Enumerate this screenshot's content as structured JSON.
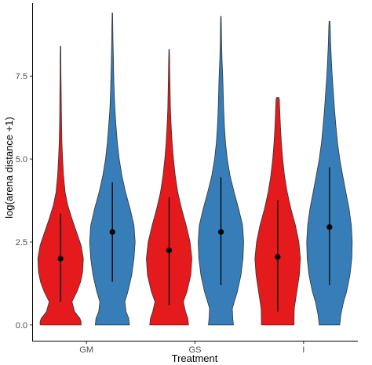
{
  "chart_data": {
    "type": "violin",
    "xlabel": "Treatment",
    "ylabel": "log(arena distance +1)",
    "ylim": [
      -0.5,
      9.7
    ],
    "yticks": [
      0.0,
      2.5,
      5.0,
      7.5
    ],
    "ytick_labels": [
      "0.0",
      "2.5",
      "5.0",
      "7.5"
    ],
    "categories": [
      "GM",
      "GS",
      "I"
    ],
    "grid": false,
    "legend": "none",
    "colors": {
      "red": "#e41a1c",
      "blue": "#377eb8",
      "outline": "#333333",
      "axis": "#000000"
    },
    "violins": [
      {
        "category": "GM",
        "color": "red",
        "min": 0.0,
        "max": 8.4,
        "point": 2.0,
        "lower": 0.7,
        "upper": 3.35,
        "profile": [
          [
            0.0,
            0.9
          ],
          [
            0.1,
            0.9
          ],
          [
            0.2,
            0.85
          ],
          [
            0.4,
            0.62
          ],
          [
            0.7,
            0.5
          ],
          [
            1.0,
            0.72
          ],
          [
            1.3,
            0.88
          ],
          [
            1.6,
            0.97
          ],
          [
            2.0,
            1.0
          ],
          [
            2.4,
            0.9
          ],
          [
            2.8,
            0.7
          ],
          [
            3.2,
            0.5
          ],
          [
            3.6,
            0.32
          ],
          [
            4.0,
            0.2
          ],
          [
            4.5,
            0.13
          ],
          [
            5.0,
            0.09
          ],
          [
            5.5,
            0.06
          ],
          [
            6.0,
            0.045
          ],
          [
            6.5,
            0.035
          ],
          [
            7.0,
            0.03
          ],
          [
            7.5,
            0.02
          ],
          [
            8.0,
            0.015
          ],
          [
            8.4,
            0.01
          ]
        ]
      },
      {
        "category": "GM",
        "color": "blue",
        "min": 0.0,
        "max": 9.4,
        "point": 2.8,
        "lower": 1.3,
        "upper": 4.3,
        "profile": [
          [
            0.0,
            0.75
          ],
          [
            0.2,
            0.72
          ],
          [
            0.4,
            0.6
          ],
          [
            0.7,
            0.55
          ],
          [
            1.0,
            0.68
          ],
          [
            1.5,
            0.85
          ],
          [
            2.0,
            0.95
          ],
          [
            2.5,
            1.0
          ],
          [
            3.0,
            0.95
          ],
          [
            3.5,
            0.78
          ],
          [
            4.0,
            0.58
          ],
          [
            4.5,
            0.42
          ],
          [
            5.0,
            0.3
          ],
          [
            5.5,
            0.22
          ],
          [
            6.0,
            0.16
          ],
          [
            6.5,
            0.11
          ],
          [
            7.0,
            0.08
          ],
          [
            7.5,
            0.06
          ],
          [
            8.0,
            0.045
          ],
          [
            8.5,
            0.03
          ],
          [
            9.0,
            0.02
          ],
          [
            9.4,
            0.01
          ]
        ]
      },
      {
        "category": "GS",
        "color": "red",
        "min": 0.0,
        "max": 8.3,
        "point": 2.25,
        "lower": 0.6,
        "upper": 3.85,
        "profile": [
          [
            0.0,
            0.85
          ],
          [
            0.2,
            0.82
          ],
          [
            0.4,
            0.72
          ],
          [
            0.7,
            0.62
          ],
          [
            1.0,
            0.78
          ],
          [
            1.5,
            0.95
          ],
          [
            2.0,
            1.0
          ],
          [
            2.5,
            0.92
          ],
          [
            3.0,
            0.75
          ],
          [
            3.5,
            0.55
          ],
          [
            4.0,
            0.38
          ],
          [
            4.5,
            0.27
          ],
          [
            5.0,
            0.19
          ],
          [
            5.5,
            0.13
          ],
          [
            6.0,
            0.09
          ],
          [
            6.5,
            0.06
          ],
          [
            7.0,
            0.045
          ],
          [
            7.5,
            0.03
          ],
          [
            8.0,
            0.02
          ],
          [
            8.3,
            0.01
          ]
        ]
      },
      {
        "category": "GS",
        "color": "blue",
        "min": 0.0,
        "max": 9.3,
        "point": 2.8,
        "lower": 1.2,
        "upper": 4.45,
        "profile": [
          [
            0.0,
            0.55
          ],
          [
            0.2,
            0.52
          ],
          [
            0.5,
            0.5
          ],
          [
            1.0,
            0.72
          ],
          [
            1.5,
            0.88
          ],
          [
            2.0,
            0.97
          ],
          [
            2.5,
            1.0
          ],
          [
            3.0,
            0.95
          ],
          [
            3.5,
            0.78
          ],
          [
            4.0,
            0.58
          ],
          [
            4.5,
            0.4
          ],
          [
            5.0,
            0.28
          ],
          [
            5.5,
            0.2
          ],
          [
            6.0,
            0.15
          ],
          [
            6.5,
            0.12
          ],
          [
            7.0,
            0.1
          ],
          [
            7.5,
            0.08
          ],
          [
            8.0,
            0.05
          ],
          [
            8.5,
            0.03
          ],
          [
            9.0,
            0.02
          ],
          [
            9.3,
            0.01
          ]
        ]
      },
      {
        "category": "I",
        "color": "red",
        "min": 0.0,
        "max": 6.85,
        "point": 2.05,
        "lower": 0.4,
        "upper": 3.75,
        "profile": [
          [
            0.0,
            0.72
          ],
          [
            0.2,
            0.72
          ],
          [
            0.5,
            0.73
          ],
          [
            1.0,
            0.84
          ],
          [
            1.5,
            0.95
          ],
          [
            2.0,
            1.0
          ],
          [
            2.5,
            0.93
          ],
          [
            3.0,
            0.78
          ],
          [
            3.5,
            0.58
          ],
          [
            4.0,
            0.42
          ],
          [
            4.5,
            0.3
          ],
          [
            5.0,
            0.22
          ],
          [
            5.5,
            0.16
          ],
          [
            6.0,
            0.12
          ],
          [
            6.5,
            0.09
          ],
          [
            6.8,
            0.07
          ],
          [
            6.85,
            0.055
          ]
        ]
      },
      {
        "category": "I",
        "color": "blue",
        "min": 0.0,
        "max": 9.15,
        "point": 2.95,
        "lower": 1.2,
        "upper": 4.75,
        "profile": [
          [
            0.0,
            0.45
          ],
          [
            0.3,
            0.5
          ],
          [
            0.7,
            0.62
          ],
          [
            1.0,
            0.75
          ],
          [
            1.5,
            0.9
          ],
          [
            2.0,
            0.98
          ],
          [
            2.5,
            1.0
          ],
          [
            3.0,
            0.96
          ],
          [
            3.5,
            0.86
          ],
          [
            4.0,
            0.72
          ],
          [
            4.5,
            0.58
          ],
          [
            5.0,
            0.45
          ],
          [
            5.5,
            0.35
          ],
          [
            6.0,
            0.28
          ],
          [
            6.5,
            0.22
          ],
          [
            7.0,
            0.17
          ],
          [
            7.5,
            0.12
          ],
          [
            8.0,
            0.08
          ],
          [
            8.5,
            0.05
          ],
          [
            9.0,
            0.03
          ],
          [
            9.15,
            0.02
          ]
        ]
      }
    ]
  }
}
